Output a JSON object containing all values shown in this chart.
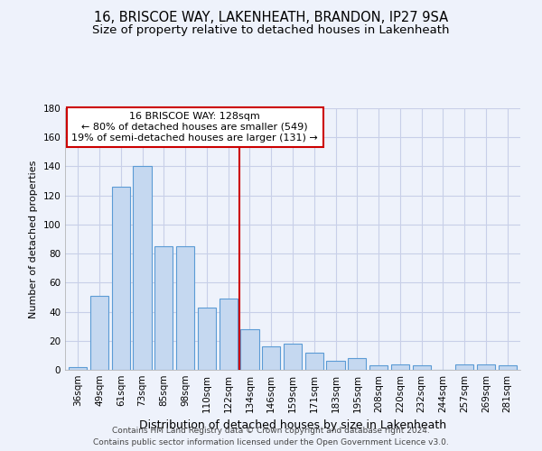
{
  "title1": "16, BRISCOE WAY, LAKENHEATH, BRANDON, IP27 9SA",
  "title2": "Size of property relative to detached houses in Lakenheath",
  "xlabel": "Distribution of detached houses by size in Lakenheath",
  "ylabel": "Number of detached properties",
  "categories": [
    "36sqm",
    "49sqm",
    "61sqm",
    "73sqm",
    "85sqm",
    "98sqm",
    "110sqm",
    "122sqm",
    "134sqm",
    "146sqm",
    "159sqm",
    "171sqm",
    "183sqm",
    "195sqm",
    "208sqm",
    "220sqm",
    "232sqm",
    "244sqm",
    "257sqm",
    "269sqm",
    "281sqm"
  ],
  "values": [
    2,
    51,
    126,
    140,
    85,
    85,
    43,
    49,
    28,
    16,
    18,
    12,
    6,
    8,
    3,
    4,
    3,
    0,
    4,
    4,
    3
  ],
  "bar_color": "#c5d8f0",
  "bar_edge_color": "#5b9bd5",
  "highlight_label": "16 BRISCOE WAY: 128sqm",
  "annotation_line1": "← 80% of detached houses are smaller (549)",
  "annotation_line2": "19% of semi-detached houses are larger (131) →",
  "vline_color": "#cc0000",
  "annotation_box_edge": "#cc0000",
  "annotation_box_face": "#ffffff",
  "ylim": [
    0,
    180
  ],
  "yticks": [
    0,
    20,
    40,
    60,
    80,
    100,
    120,
    140,
    160,
    180
  ],
  "footer1": "Contains HM Land Registry data © Crown copyright and database right 2024.",
  "footer2": "Contains public sector information licensed under the Open Government Licence v3.0.",
  "bg_color": "#eef2fb",
  "grid_color": "#c8cfe8",
  "title1_fontsize": 10.5,
  "title2_fontsize": 9.5,
  "xlabel_fontsize": 9,
  "ylabel_fontsize": 8,
  "tick_fontsize": 7.5,
  "footer_fontsize": 6.5,
  "annot_fontsize": 8
}
